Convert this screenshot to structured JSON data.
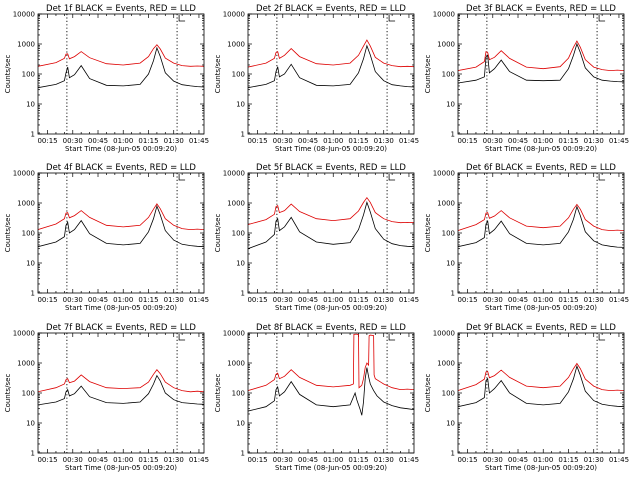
{
  "colors": {
    "events": "#000000",
    "lld": "#dd0000",
    "background": "#ffffff"
  },
  "chart_data": {
    "type": "line",
    "layout": "3x3 grid",
    "xlabel": "Start Time (08-Jun-05 00:09:20)",
    "ylabel": "Counts/sec",
    "yscale": "log",
    "ylim": [
      1,
      10000
    ],
    "y_ticks": [
      1,
      10,
      100,
      1000,
      10000
    ],
    "y_tick_labels": [
      "1",
      "10",
      "100",
      "1000",
      "10000"
    ],
    "x_unit": "minutes after 00:00",
    "xlim": [
      9.33,
      108
    ],
    "x_ticks": [
      15,
      30,
      45,
      60,
      75,
      90,
      105
    ],
    "x_tick_labels": [
      "00:15",
      "00:30",
      "00:45",
      "01:00",
      "01:15",
      "01:30",
      "01:45"
    ],
    "vertical_markers": [
      26.5,
      92
    ],
    "panels": [
      {
        "title": "Det 1f BLACK = Events, RED = LLD",
        "series": [
          {
            "name": "Events",
            "x": [
              9.3,
              20,
              25,
              26,
              27,
              28,
              31,
              35,
              40,
              50,
              60,
              70,
              75,
              78,
              80,
              82,
              85,
              90,
              95,
              100,
              104,
              108
            ],
            "y": [
              35,
              45,
              60,
              110,
              170,
              75,
              95,
              190,
              70,
              42,
              40,
              45,
              100,
              280,
              740,
              380,
              110,
              58,
              44,
              40,
              38,
              37
            ]
          },
          {
            "name": "LLD",
            "x": [
              9.3,
              20,
              25,
              26,
              27,
              28,
              31,
              35,
              40,
              50,
              60,
              70,
              75,
              78,
              80,
              82,
              85,
              90,
              95,
              100,
              104,
              108
            ],
            "y": [
              180,
              240,
              330,
              460,
              470,
              320,
              380,
              560,
              350,
              220,
              200,
              230,
              380,
              700,
              950,
              680,
              340,
              230,
              190,
              180,
              185,
              180
            ]
          }
        ]
      },
      {
        "title": "Det 2f BLACK = Events, RED = LLD",
        "series": [
          {
            "name": "Events",
            "x": [
              9.3,
              20,
              25,
              26,
              27,
              28,
              31,
              35,
              40,
              50,
              60,
              70,
              75,
              78,
              80,
              82,
              85,
              90,
              95,
              100,
              104,
              108
            ],
            "y": [
              35,
              45,
              60,
              120,
              175,
              80,
              100,
              210,
              75,
              42,
              40,
              45,
              110,
              320,
              880,
              430,
              120,
              60,
              44,
              40,
              38,
              37
            ]
          },
          {
            "name": "LLD",
            "x": [
              9.3,
              20,
              25,
              26,
              27,
              28,
              31,
              35,
              40,
              50,
              60,
              70,
              75,
              78,
              80,
              82,
              85,
              90,
              95,
              100,
              104,
              108
            ],
            "y": [
              170,
              230,
              330,
              520,
              560,
              330,
              420,
              700,
              380,
              220,
              200,
              230,
              420,
              850,
              1350,
              850,
              360,
              230,
              190,
              175,
              180,
              175
            ]
          }
        ]
      },
      {
        "title": "Det 3f BLACK = Events, RED = LLD",
        "series": [
          {
            "name": "Events",
            "x": [
              9.3,
              20,
              25,
              26,
              27,
              28,
              31,
              35,
              40,
              50,
              60,
              70,
              75,
              78,
              80,
              82,
              85,
              90,
              95,
              100,
              104,
              108
            ],
            "y": [
              50,
              62,
              80,
              360,
              420,
              110,
              150,
              290,
              120,
              62,
              60,
              62,
              150,
              420,
              1000,
              520,
              160,
              80,
              62,
              58,
              56,
              55
            ]
          },
          {
            "name": "LLD",
            "x": [
              9.3,
              20,
              25,
              26,
              27,
              28,
              31,
              35,
              40,
              50,
              60,
              70,
              75,
              78,
              80,
              82,
              85,
              90,
              95,
              100,
              104,
              108
            ],
            "y": [
              130,
              170,
              260,
              560,
              520,
              300,
              360,
              600,
              330,
              170,
              150,
              175,
              340,
              780,
              1250,
              780,
              300,
              170,
              140,
              130,
              135,
              130
            ]
          }
        ]
      },
      {
        "title": "Det 4f BLACK = Events, RED = LLD",
        "series": [
          {
            "name": "Events",
            "x": [
              9.3,
              20,
              25,
              26,
              27,
              28,
              31,
              35,
              40,
              50,
              60,
              70,
              75,
              78,
              80,
              82,
              85,
              90,
              95,
              100,
              104,
              108
            ],
            "y": [
              35,
              50,
              75,
              180,
              230,
              100,
              130,
              260,
              95,
              45,
              40,
              45,
              110,
              300,
              780,
              400,
              120,
              58,
              42,
              38,
              36,
              35
            ]
          },
          {
            "name": "LLD",
            "x": [
              9.3,
              20,
              25,
              26,
              27,
              28,
              31,
              35,
              40,
              50,
              60,
              70,
              75,
              78,
              80,
              82,
              85,
              90,
              95,
              100,
              104,
              108
            ],
            "y": [
              130,
              200,
              300,
              460,
              480,
              320,
              380,
              560,
              330,
              180,
              160,
              180,
              330,
              620,
              930,
              640,
              300,
              180,
              140,
              130,
              135,
              130
            ]
          }
        ]
      },
      {
        "title": "Det 5f BLACK = Events, RED = LLD",
        "series": [
          {
            "name": "Events",
            "x": [
              9.3,
              20,
              25,
              26,
              27,
              28,
              31,
              35,
              40,
              50,
              60,
              70,
              75,
              78,
              80,
              82,
              85,
              90,
              95,
              100,
              104,
              108
            ],
            "y": [
              30,
              50,
              90,
              250,
              300,
              120,
              160,
              330,
              110,
              50,
              42,
              48,
              130,
              400,
              1050,
              500,
              140,
              62,
              44,
              38,
              36,
              35
            ]
          },
          {
            "name": "LLD",
            "x": [
              9.3,
              20,
              25,
              26,
              27,
              28,
              31,
              35,
              40,
              50,
              60,
              70,
              75,
              78,
              80,
              82,
              85,
              90,
              95,
              100,
              104,
              108
            ],
            "y": [
              190,
              280,
              420,
              760,
              820,
              480,
              560,
              920,
              520,
              300,
              260,
              300,
              540,
              1050,
              1500,
              1050,
              480,
              300,
              240,
              220,
              225,
              220
            ]
          }
        ]
      },
      {
        "title": "Det 6f BLACK = Events, RED = LLD",
        "series": [
          {
            "name": "Events",
            "x": [
              9.3,
              20,
              25,
              26,
              27,
              28,
              31,
              35,
              40,
              50,
              60,
              70,
              75,
              78,
              80,
              82,
              85,
              90,
              95,
              100,
              104,
              108
            ],
            "y": [
              35,
              48,
              70,
              200,
              250,
              95,
              130,
              250,
              95,
              45,
              40,
              45,
              110,
              290,
              750,
              380,
              110,
              55,
              40,
              36,
              34,
              33
            ]
          },
          {
            "name": "LLD",
            "x": [
              9.3,
              20,
              25,
              26,
              27,
              28,
              31,
              35,
              40,
              50,
              60,
              70,
              75,
              78,
              80,
              82,
              85,
              90,
              95,
              100,
              104,
              108
            ],
            "y": [
              120,
              190,
              280,
              460,
              480,
              310,
              370,
              560,
              320,
              170,
              150,
              170,
              320,
              620,
              900,
              620,
              280,
              170,
              130,
              120,
              125,
              120
            ]
          }
        ]
      },
      {
        "title": "Det 7f BLACK = Events, RED = LLD",
        "series": [
          {
            "name": "Events",
            "x": [
              9.3,
              20,
              25,
              26,
              27,
              28,
              31,
              35,
              40,
              50,
              60,
              70,
              75,
              78,
              80,
              82,
              85,
              90,
              95,
              100,
              104,
              108
            ],
            "y": [
              40,
              50,
              65,
              110,
              130,
              80,
              95,
              170,
              75,
              48,
              45,
              50,
              95,
              200,
              380,
              250,
              100,
              60,
              48,
              45,
              43,
              42
            ]
          },
          {
            "name": "LLD",
            "x": [
              9.3,
              20,
              25,
              26,
              27,
              28,
              31,
              35,
              40,
              50,
              60,
              70,
              75,
              78,
              80,
              82,
              85,
              90,
              95,
              100,
              104,
              108
            ],
            "y": [
              110,
              150,
              200,
              280,
              300,
              220,
              250,
              400,
              240,
              150,
              140,
              150,
              230,
              420,
              600,
              440,
              230,
              150,
              120,
              110,
              115,
              110
            ]
          }
        ]
      },
      {
        "title": "Det 8f BLACK = Events, RED = LLD",
        "series": [
          {
            "name": "Events",
            "x": [
              9.3,
              20,
              25,
              26,
              27,
              28,
              31,
              35,
              40,
              50,
              60,
              70,
              73,
              74,
              76,
              77,
              78,
              79,
              80,
              81,
              82,
              84,
              86,
              90,
              95,
              100,
              104,
              108
            ],
            "y": [
              25,
              35,
              55,
              130,
              160,
              80,
              110,
              240,
              90,
              40,
              35,
              40,
              100,
              60,
              28,
              18,
              50,
              300,
              700,
              350,
              200,
              120,
              80,
              50,
              38,
              32,
              30,
              28
            ]
          },
          {
            "name": "LLD",
            "x": [
              9.3,
              20,
              25,
              26,
              27,
              28,
              31,
              35,
              40,
              50,
              60,
              70,
              72,
              72.3,
              74,
              75,
              75.3,
              77,
              78,
              79,
              80,
              81,
              81.3,
              82,
              84,
              84.3,
              85,
              90,
              95,
              100,
              104,
              108
            ],
            "y": [
              120,
              180,
              280,
              420,
              460,
              300,
              360,
              600,
              330,
              180,
              160,
              180,
              200,
              9000,
              9200,
              8800,
              150,
              180,
              300,
              700,
              1000,
              850,
              8000,
              8500,
              8200,
              400,
              300,
              200,
              150,
              130,
              135,
              130
            ]
          }
        ]
      },
      {
        "title": "Det 9f BLACK = Events, RED = LLD",
        "series": [
          {
            "name": "Events",
            "x": [
              9.3,
              20,
              25,
              26,
              27,
              28,
              31,
              35,
              40,
              50,
              60,
              70,
              75,
              78,
              80,
              82,
              85,
              90,
              95,
              100,
              104,
              108
            ],
            "y": [
              35,
              48,
              70,
              260,
              300,
              100,
              140,
              260,
              100,
              45,
              40,
              45,
              110,
              300,
              780,
              390,
              115,
              56,
              42,
              38,
              36,
              35
            ]
          },
          {
            "name": "LLD",
            "x": [
              9.3,
              20,
              25,
              26,
              27,
              28,
              31,
              35,
              40,
              50,
              60,
              70,
              75,
              78,
              80,
              82,
              85,
              90,
              95,
              100,
              104,
              108
            ],
            "y": [
              120,
              190,
              290,
              500,
              520,
              320,
              380,
              580,
              330,
              170,
              150,
              170,
              330,
              650,
              960,
              650,
              290,
              170,
              130,
              120,
              125,
              120
            ]
          }
        ]
      }
    ]
  }
}
